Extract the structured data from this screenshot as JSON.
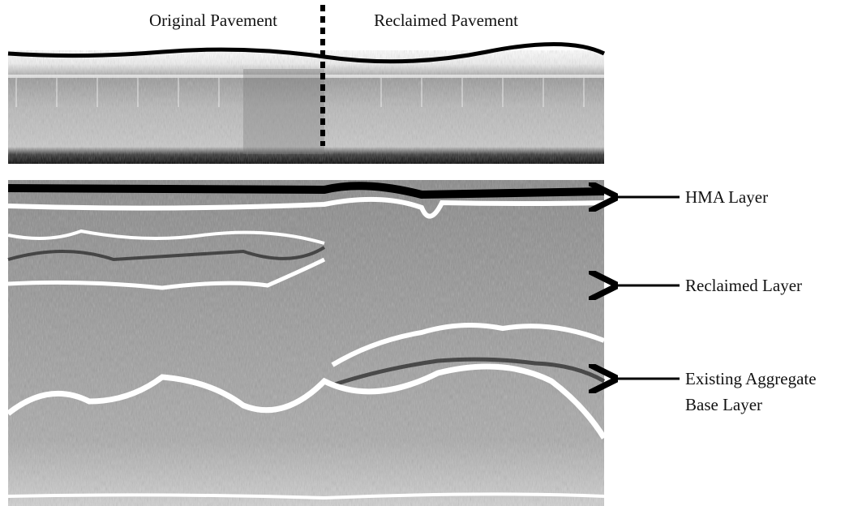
{
  "header": {
    "left_label": "Original Pavement",
    "right_label": "Reclaimed Pavement"
  },
  "annotations": [
    {
      "lines": [
        "HMA Layer"
      ]
    },
    {
      "lines": [
        "Reclaimed Layer"
      ]
    },
    {
      "lines": [
        "Existing Aggregate",
        "Base Layer"
      ]
    }
  ]
}
